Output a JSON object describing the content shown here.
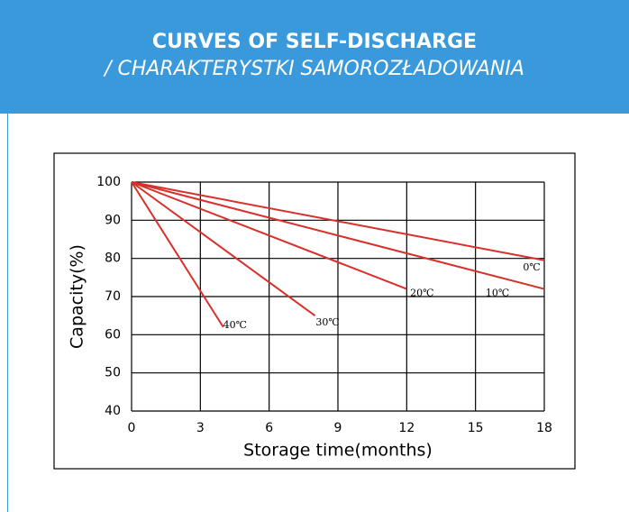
{
  "header": {
    "title": "CURVES OF SELF-DISCHARGE",
    "subtitle": "/ CHARAKTERYSTKI SAMOROZŁADOWANIA"
  },
  "chart_data": {
    "type": "line",
    "x_label": "Storage time(months)",
    "y_label": "Capacity(%)",
    "xlim": [
      0,
      18
    ],
    "ylim": [
      40,
      100
    ],
    "xticks": [
      0,
      3,
      6,
      9,
      12,
      15,
      18
    ],
    "yticks": [
      40,
      50,
      60,
      70,
      80,
      90,
      100
    ],
    "grid": true,
    "series": [
      {
        "name": "0℃",
        "color": "#d8302a",
        "x": [
          0,
          18
        ],
        "values": [
          100,
          79.5
        ]
      },
      {
        "name": "10℃",
        "color": "#d8302a",
        "x": [
          0,
          18
        ],
        "values": [
          100,
          72
        ]
      },
      {
        "name": "20℃",
        "color": "#d8302a",
        "x": [
          0,
          12
        ],
        "values": [
          100,
          72
        ]
      },
      {
        "name": "30℃",
        "color": "#d8302a",
        "x": [
          0,
          8
        ],
        "values": [
          100,
          65
        ]
      },
      {
        "name": "40℃",
        "color": "#d8302a",
        "x": [
          0,
          4
        ],
        "values": [
          100,
          62
        ]
      }
    ]
  }
}
